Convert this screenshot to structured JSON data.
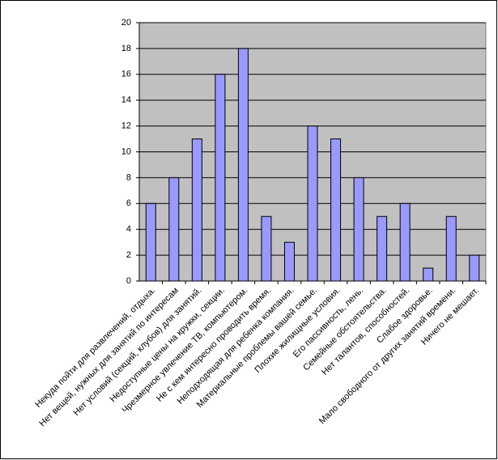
{
  "chart_data": {
    "type": "bar",
    "categories": [
      "Некуда пойти для развлечений, отдыха.",
      "Нет вещей, нужных для занятий по интересам",
      "Нет условий (секций, клубов) для занятий.",
      "Недоступные цены на кружки, секции.",
      "Чрезмерное увлечение ТВ, компьютером.",
      "Не с кем интересно проводить время.",
      "Неподходящая для ребенка компания.",
      "Материальные проблемы вашей семье.",
      "Плохие жилищные условия.",
      "Его пассивность, лень.",
      "Семейные обстоятельства.",
      "Нет талантов, способностей.",
      "Слабое здоровье.",
      "Мало свободного от других занятий времени.",
      "Ничего не мешает."
    ],
    "values": [
      6,
      8,
      11,
      16,
      18,
      5,
      3,
      12,
      11,
      8,
      5,
      6,
      1,
      5,
      2
    ],
    "color": "#9999ff",
    "ylim": [
      0,
      20
    ],
    "yticks": [
      0,
      2,
      4,
      6,
      8,
      10,
      12,
      14,
      16,
      18,
      20
    ],
    "grid": true
  }
}
